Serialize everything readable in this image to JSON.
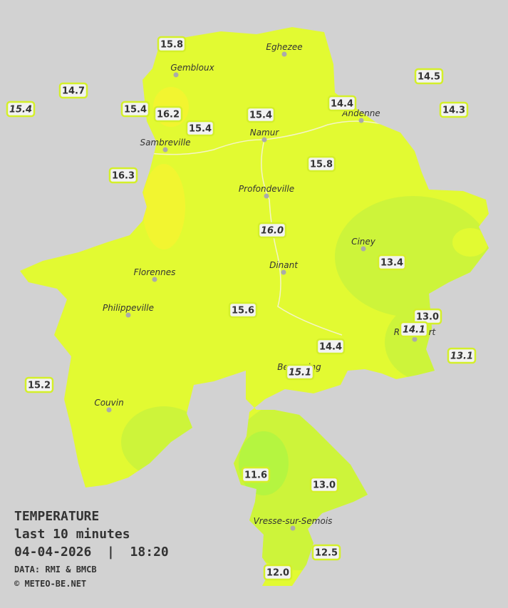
{
  "title": {
    "line1": "TEMPERATURE",
    "line2": "last 10 minutes",
    "line3": "04-04-2026  |  18:20",
    "source": "DATA: RMI & BMCB",
    "copyright": "© METEO-BE.NET"
  },
  "towns": [
    {
      "name": "Eghezee"
    },
    {
      "name": "Gembloux"
    },
    {
      "name": "Andenne"
    },
    {
      "name": "Namur"
    },
    {
      "name": "Sambreville"
    },
    {
      "name": "Profondeville"
    },
    {
      "name": "Ciney"
    },
    {
      "name": "Dinant"
    },
    {
      "name": "Florennes"
    },
    {
      "name": "Philippeville"
    },
    {
      "name": "Rochefort"
    },
    {
      "name": "Beauraing"
    },
    {
      "name": "Couvin"
    },
    {
      "name": "Vresse-sur-Semois"
    }
  ],
  "stations": [
    {
      "label": "15.8"
    },
    {
      "label": "14.7"
    },
    {
      "label": "15.4",
      "italic": true
    },
    {
      "label": "15.4"
    },
    {
      "label": "16.2"
    },
    {
      "label": "15.4"
    },
    {
      "label": "15.4"
    },
    {
      "label": "14.4"
    },
    {
      "label": "14.5"
    },
    {
      "label": "14.3"
    },
    {
      "label": "16.3"
    },
    {
      "label": "15.8"
    },
    {
      "label": "16.0",
      "italic": true
    },
    {
      "label": "13.4"
    },
    {
      "label": "15.6"
    },
    {
      "label": "13.0"
    },
    {
      "label": "14.1",
      "italic": true
    },
    {
      "label": "14.4"
    },
    {
      "label": "15.1",
      "italic": true
    },
    {
      "label": "13.1",
      "italic": true
    },
    {
      "label": "15.2"
    },
    {
      "label": "11.6"
    },
    {
      "label": "13.0"
    },
    {
      "label": "12.5"
    },
    {
      "label": "12.0"
    }
  ]
}
